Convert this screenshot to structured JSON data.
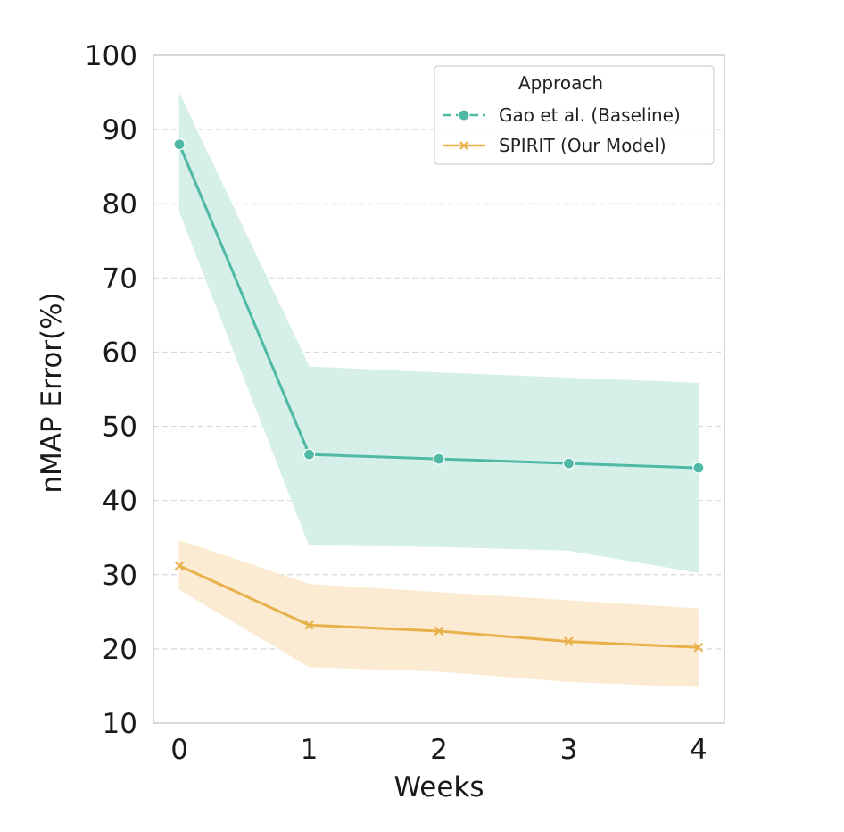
{
  "chart_data": {
    "type": "line",
    "x": [
      0,
      1,
      2,
      3,
      4
    ],
    "xlabel": "Weeks",
    "ylabel": "nMAP Error(%)",
    "xlim": [
      -0.2,
      4.2
    ],
    "ylim": [
      10,
      100
    ],
    "xticks": [
      "0",
      "1",
      "2",
      "3",
      "4"
    ],
    "yticks": [
      "10",
      "20",
      "30",
      "40",
      "50",
      "60",
      "70",
      "80",
      "90",
      "100"
    ],
    "grid": "horizontal-dashed",
    "legend": {
      "title": "Approach",
      "placement": "top-right"
    },
    "series": [
      {
        "name": "Gao et al. (Baseline)",
        "marker": "circle",
        "color": "#4fb9a6",
        "band_color": "#d6efe9",
        "values": [
          88.0,
          46.2,
          45.6,
          45.0,
          44.4
        ],
        "lower": [
          79.0,
          34.0,
          33.8,
          33.3,
          30.3
        ],
        "upper": [
          94.8,
          58.0,
          57.2,
          56.5,
          55.8
        ]
      },
      {
        "name": "SPIRIT (Our Model)",
        "marker": "x",
        "color": "#e9b14c",
        "band_color": "#fbebd3",
        "values": [
          31.2,
          23.2,
          22.4,
          21.0,
          20.2
        ],
        "lower": [
          28.0,
          17.6,
          17.0,
          15.6,
          14.9
        ],
        "upper": [
          34.6,
          28.7,
          27.6,
          26.5,
          25.4
        ]
      }
    ]
  }
}
